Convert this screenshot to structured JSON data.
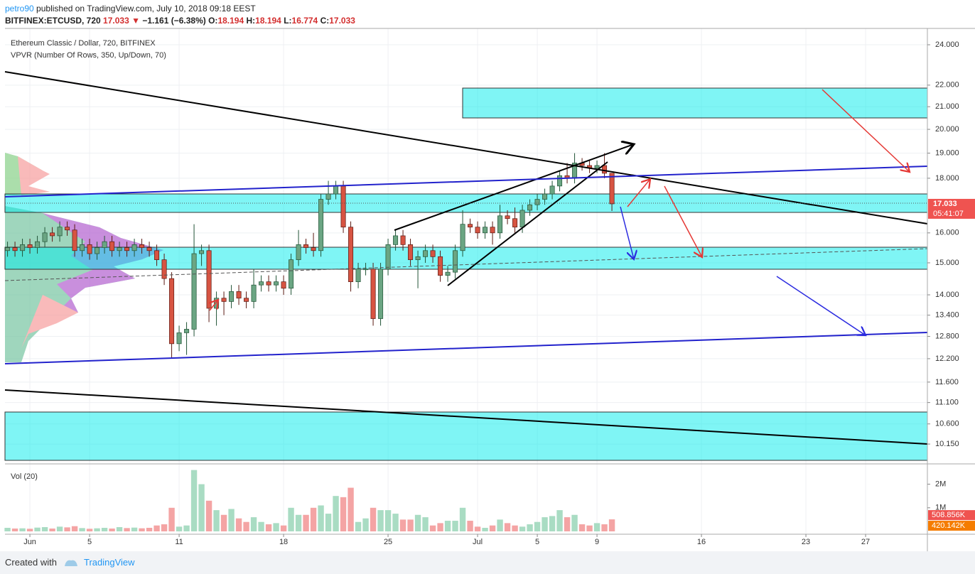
{
  "header": {
    "publisher": "petro90",
    "published": "published on TradingView.com, July 10, 2018 09:18 EEST",
    "symbol": "BITFINEX:ETCUSD, 720",
    "arrow": "▼",
    "change": {
      "value": -1.161,
      "label": "−1.161"
    },
    "change_pct": {
      "value": -6.38,
      "label": "(−6.38%)"
    },
    "open_label": "O:",
    "high_label": "H:",
    "low_label": "L:",
    "close_label": "C:"
  },
  "chart_data": {
    "type": "candlestick",
    "title": "Ethereum Classic / Dollar, 720, BITFINEX",
    "subtitle": "VPVR (Number Of Rows, 350, Up/Down, 70)",
    "countdown": "05:41:07",
    "log_scale": true,
    "grid": true,
    "up_color": "#6ba583",
    "down_color": "#d75442",
    "up_border": "#225437",
    "down_border": "#5b1a13",
    "xlim": [
      -0.67,
      61.14
    ],
    "xticks": [
      {
        "value": 1,
        "label": "Jun"
      },
      5,
      11,
      18,
      25,
      {
        "value": 31,
        "label": "Jul"
      },
      {
        "value": 35,
        "label": "5"
      },
      {
        "value": 39,
        "label": "9"
      },
      {
        "value": 46,
        "label": "16"
      },
      {
        "value": 53,
        "label": "23"
      },
      {
        "value": 57,
        "label": "27"
      }
    ],
    "ylim": [
      9.74,
      24.86
    ],
    "yticks": [
      {
        "value": 24,
        "label": "24.000"
      },
      {
        "value": 22,
        "label": "22.000"
      },
      {
        "value": 21,
        "label": "21.000"
      },
      {
        "value": 20,
        "label": "20.000"
      },
      {
        "value": 19,
        "label": "19.000"
      },
      {
        "value": 18,
        "label": "18.000"
      },
      {
        "value": 16,
        "label": "16.000"
      },
      {
        "value": 15,
        "label": "15.000"
      },
      {
        "value": 14,
        "label": "14.000"
      },
      {
        "value": 13.4,
        "label": "13.400"
      },
      {
        "value": 12.8,
        "label": "12.800"
      },
      {
        "value": 12.2,
        "label": "12.200"
      },
      {
        "value": 11.6,
        "label": "11.600"
      },
      {
        "value": 11.1,
        "label": "11.100"
      },
      {
        "value": 10.6,
        "label": "10.600"
      },
      {
        "value": 10.15,
        "label": "10.150"
      }
    ],
    "x": [
      -0.5,
      0,
      0.5,
      1,
      1.5,
      2,
      2.5,
      3,
      3.5,
      4,
      4.5,
      5,
      5.5,
      6,
      6.5,
      7,
      7.5,
      8,
      8.5,
      9,
      9.5,
      10,
      10.5,
      11,
      11.5,
      12,
      12.5,
      13,
      13.5,
      14,
      14.5,
      15,
      15.5,
      16,
      16.5,
      17,
      17.5,
      18,
      18.5,
      19,
      19.5,
      20,
      20.5,
      21,
      21.5,
      22,
      22.5,
      23,
      23.5,
      24,
      24.5,
      25,
      25.5,
      26,
      26.5,
      27,
      27.5,
      28,
      28.5,
      29,
      29.5,
      30,
      30.5,
      31,
      31.5,
      32,
      32.5,
      33,
      33.5,
      34,
      34.5,
      35,
      35.5,
      36,
      36.5,
      37,
      37.5,
      38,
      38.5,
      39,
      39.5,
      40
    ],
    "open": [
      15.4,
      15.5,
      15.4,
      15.6,
      15.5,
      15.7,
      16.0,
      15.9,
      16.2,
      16.1,
      15.4,
      15.6,
      15.3,
      15.5,
      15.7,
      15.4,
      15.5,
      15.4,
      15.6,
      15.5,
      15.4,
      15.1,
      14.5,
      12.6,
      12.9,
      13.0,
      15.3,
      15.4,
      13.6,
      13.9,
      13.8,
      14.1,
      13.9,
      13.8,
      14.3,
      14.4,
      14.3,
      14.4,
      14.2,
      15.1,
      15.6,
      15.5,
      15.4,
      17.2,
      17.4,
      17.7,
      16.2,
      14.4,
      14.8,
      14.8,
      13.3,
      14.8,
      15.6,
      15.9,
      15.6,
      15.1,
      15.2,
      15.4,
      15.2,
      14.6,
      14.7,
      15.4,
      16.3,
      16.2,
      16.0,
      16.2,
      16.0,
      16.6,
      16.5,
      16.2,
      16.8,
      17.0,
      17.2,
      17.4,
      17.7,
      18.1,
      18.0,
      18.6,
      18.5,
      18.4,
      18.5,
      18.194
    ],
    "high": [
      15.7,
      15.7,
      15.8,
      15.8,
      15.9,
      16.2,
      16.2,
      16.4,
      16.4,
      16.3,
      15.8,
      15.8,
      15.7,
      15.9,
      15.9,
      15.7,
      15.7,
      15.8,
      15.8,
      15.7,
      15.6,
      15.3,
      14.7,
      13.1,
      13.2,
      16.3,
      15.6,
      15.6,
      14.1,
      14.1,
      14.3,
      14.3,
      14.1,
      14.8,
      14.6,
      14.6,
      14.6,
      14.6,
      15.3,
      16.1,
      15.8,
      16.0,
      17.4,
      17.9,
      17.9,
      17.9,
      16.4,
      15.0,
      15.0,
      15.0,
      15.0,
      15.8,
      16.1,
      16.1,
      15.8,
      15.4,
      15.6,
      15.6,
      15.4,
      14.9,
      15.6,
      16.8,
      16.5,
      16.4,
      16.4,
      16.4,
      17.0,
      16.8,
      16.9,
      17.0,
      17.2,
      17.4,
      17.6,
      17.9,
      18.3,
      18.6,
      19.0,
      18.8,
      18.7,
      18.7,
      19.0,
      18.194
    ],
    "low": [
      15.2,
      15.2,
      15.2,
      15.3,
      15.3,
      15.5,
      15.7,
      15.7,
      15.9,
      15.2,
      15.2,
      15.1,
      15.1,
      15.3,
      15.2,
      15.2,
      15.2,
      15.2,
      15.3,
      15.2,
      14.9,
      14.3,
      12.2,
      12.4,
      12.3,
      12.8,
      14.9,
      13.2,
      13.1,
      13.4,
      13.6,
      13.7,
      13.6,
      13.6,
      14.1,
      14.1,
      14.1,
      14.0,
      14.0,
      14.9,
      15.3,
      15.2,
      15.2,
      17.0,
      17.2,
      16.0,
      14.1,
      14.2,
      14.6,
      13.1,
      13.1,
      14.6,
      15.4,
      15.4,
      14.9,
      14.2,
      15.0,
      15.0,
      14.4,
      14.4,
      14.5,
      15.2,
      16.0,
      15.8,
      15.8,
      15.6,
      15.8,
      16.3,
      16.0,
      16.0,
      16.6,
      16.8,
      17.0,
      17.2,
      17.5,
      17.8,
      17.8,
      18.3,
      18.2,
      18.2,
      18.0,
      16.774
    ],
    "close": [
      15.5,
      15.4,
      15.6,
      15.5,
      15.7,
      16.0,
      15.9,
      16.2,
      16.1,
      15.4,
      15.6,
      15.3,
      15.5,
      15.7,
      15.4,
      15.5,
      15.4,
      15.6,
      15.5,
      15.4,
      15.1,
      14.5,
      12.6,
      12.9,
      13.0,
      15.3,
      15.4,
      13.6,
      13.9,
      13.8,
      14.1,
      13.9,
      13.8,
      14.3,
      14.4,
      14.3,
      14.4,
      14.2,
      15.1,
      15.6,
      15.5,
      15.4,
      17.2,
      17.4,
      17.7,
      16.2,
      14.4,
      14.8,
      14.8,
      13.3,
      14.8,
      15.6,
      15.9,
      15.6,
      15.1,
      15.2,
      15.4,
      15.2,
      14.6,
      14.7,
      15.4,
      16.3,
      16.2,
      16.0,
      16.2,
      16.0,
      16.6,
      16.5,
      16.2,
      16.8,
      17.0,
      17.2,
      17.4,
      17.7,
      18.1,
      18.0,
      18.6,
      18.5,
      18.4,
      18.5,
      18.194,
      17.033
    ],
    "volume": {
      "title": "Vol (20)",
      "up_color": "#a9dcc3",
      "down_color": "#f4a4a4",
      "ylim": [
        0,
        2800000
      ],
      "yticks": [
        {
          "value": 1000000,
          "label": "1M"
        },
        {
          "value": 2000000,
          "label": "2M"
        }
      ],
      "values": [
        150000,
        120000,
        130000,
        110000,
        160000,
        180000,
        120000,
        200000,
        170000,
        220000,
        140000,
        110000,
        130000,
        150000,
        120000,
        180000,
        140000,
        160000,
        130000,
        150000,
        250000,
        300000,
        1000000,
        200000,
        250000,
        2600000,
        2000000,
        1300000,
        900000,
        700000,
        950000,
        550000,
        400000,
        600000,
        400000,
        300000,
        350000,
        250000,
        1000000,
        700000,
        700000,
        1000000,
        1100000,
        750000,
        1500000,
        1450000,
        1850000,
        400000,
        550000,
        1000000,
        900000,
        900000,
        750000,
        500000,
        500000,
        700000,
        600000,
        250000,
        350000,
        450000,
        450000,
        1000000,
        450000,
        200000,
        150000,
        250000,
        500000,
        350000,
        250000,
        200000,
        300000,
        400000,
        600000,
        650000,
        900000,
        600000,
        700000,
        300000,
        250000,
        350000,
        300000,
        508856
      ],
      "labels": [
        {
          "value": 508856,
          "label": "508.856K",
          "color": "#ef5350"
        },
        {
          "value": 420142,
          "label": "420.142K",
          "color": "#f57c00"
        }
      ]
    }
  },
  "footer": {
    "created": "Created with",
    "brand": "TradingView"
  }
}
